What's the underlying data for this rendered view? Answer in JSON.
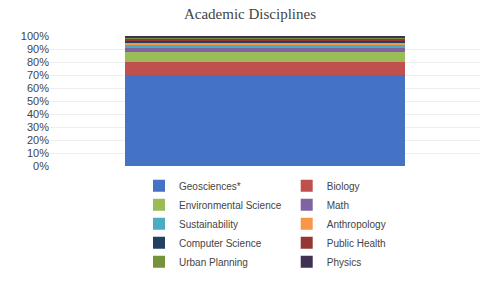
{
  "chart_data": {
    "type": "bar",
    "title": "Academic Disciplines",
    "stacked": true,
    "categories": [
      null
    ],
    "series": [
      {
        "name": "Geosciences*",
        "color": "#4472C4",
        "values": [
          69.8
        ]
      },
      {
        "name": "Biology",
        "color": "#C0504D",
        "values": [
          10.3
        ]
      },
      {
        "name": "Environmental Science",
        "color": "#9BBB59",
        "values": [
          7.5
        ]
      },
      {
        "name": "Math",
        "color": "#8064A2",
        "values": [
          3.2
        ]
      },
      {
        "name": "Sustainability",
        "color": "#4BACC6",
        "values": [
          2.2
        ]
      },
      {
        "name": "Anthropology",
        "color": "#F79646",
        "values": [
          1.6
        ]
      },
      {
        "name": "Computer Science",
        "color": "#243F60",
        "values": [
          1.6
        ]
      },
      {
        "name": "Public Health",
        "color": "#963634",
        "values": [
          1.6
        ]
      },
      {
        "name": "Urban Planning",
        "color": "#76923C",
        "values": [
          1.1
        ]
      },
      {
        "name": "Physics",
        "color": "#403152",
        "values": [
          1.1
        ]
      }
    ],
    "ylim": [
      0,
      100
    ],
    "yticks": [
      {
        "value": 0,
        "label": "0%"
      },
      {
        "value": 10,
        "label": "10%"
      },
      {
        "value": 20,
        "label": "20%"
      },
      {
        "value": 30,
        "label": "30%"
      },
      {
        "value": 40,
        "label": "40%"
      },
      {
        "value": 50,
        "label": "50%"
      },
      {
        "value": 60,
        "label": "60%"
      },
      {
        "value": 70,
        "label": "70%"
      },
      {
        "value": 80,
        "label": "80%"
      },
      {
        "value": 90,
        "label": "90%"
      },
      {
        "value": 100,
        "label": "100%"
      }
    ],
    "grid": true,
    "legend": "bottom",
    "tick_labels": "y"
  }
}
